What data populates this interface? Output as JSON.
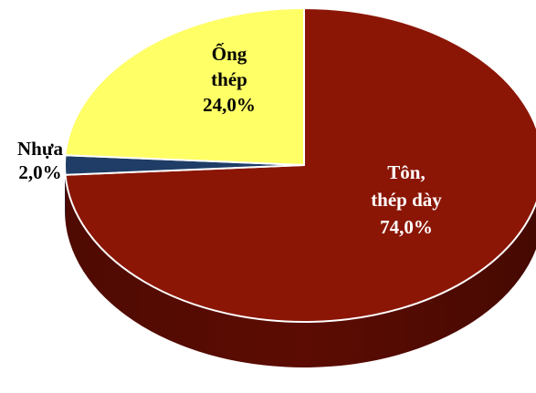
{
  "chart_data": {
    "type": "pie",
    "title": "",
    "slices": [
      {
        "name": "Tôn, thép dày",
        "value": 74.0,
        "label_lines": [
          "Tôn,",
          "thép dày",
          "74,0%"
        ],
        "color": "#8b1606",
        "side_color": "#5c0c02",
        "label_color": "#ffffff"
      },
      {
        "name": "Nhựa",
        "value": 2.0,
        "label_lines": [
          "Nhựa",
          "2,0%"
        ],
        "color": "#1f3d66",
        "side_color": "#14263f",
        "label_color": "#000000"
      },
      {
        "name": "Ống thép",
        "value": 24.0,
        "label_lines": [
          "Ống",
          "thép",
          "24,0%"
        ],
        "color": "#ffff66",
        "side_color": "#c8c83a",
        "label_color": "#000000"
      }
    ]
  }
}
